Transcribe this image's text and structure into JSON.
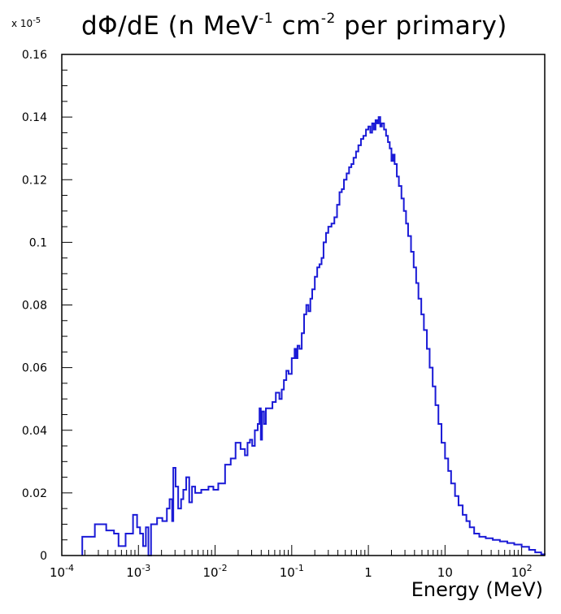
{
  "chart_data": {
    "type": "line",
    "title": {
      "main": "dΦ/dE (n MeV",
      "sup1": "-1",
      "mid": " cm",
      "sup2": "-2",
      "end": " per primary)"
    },
    "y_multiplier": {
      "prefix": "x 10",
      "exponent": "-5"
    },
    "xlabel": "Energy (MeV)",
    "ylabel": "",
    "x_scale": "log",
    "xlim": [
      0.0001,
      200
    ],
    "ylim": [
      0,
      0.16
    ],
    "yticks": [
      {
        "value": 0,
        "label": "0"
      },
      {
        "value": 0.02,
        "label": "0.02"
      },
      {
        "value": 0.04,
        "label": "0.04"
      },
      {
        "value": 0.06,
        "label": "0.06"
      },
      {
        "value": 0.08,
        "label": "0.08"
      },
      {
        "value": 0.1,
        "label": "0.1"
      },
      {
        "value": 0.12,
        "label": "0.12"
      },
      {
        "value": 0.14,
        "label": "0.14"
      },
      {
        "value": 0.16,
        "label": "0.16"
      }
    ],
    "xticks": [
      {
        "value": 0.0001,
        "base": "10",
        "exp": "-4"
      },
      {
        "value": 0.001,
        "base": "10",
        "exp": "-3"
      },
      {
        "value": 0.01,
        "base": "10",
        "exp": "-2"
      },
      {
        "value": 0.1,
        "base": "10",
        "exp": "-1"
      },
      {
        "value": 1,
        "base": "1",
        "exp": ""
      },
      {
        "value": 10,
        "base": "10",
        "exp": ""
      },
      {
        "value": 100,
        "base": "10",
        "exp": "2"
      }
    ],
    "grid": false,
    "series": [
      {
        "color": "#1a1ad6",
        "points": [
          [
            0.000185,
            0
          ],
          [
            0.000185,
            0.006
          ],
          [
            0.00027,
            0.01
          ],
          [
            0.00038,
            0.008
          ],
          [
            0.00048,
            0.007
          ],
          [
            0.00055,
            0.003
          ],
          [
            0.00068,
            0.007
          ],
          [
            0.00085,
            0.013
          ],
          [
            0.00096,
            0.009
          ],
          [
            0.00105,
            0.007
          ],
          [
            0.00115,
            0.003
          ],
          [
            0.00125,
            0.009
          ],
          [
            0.00135,
            0
          ],
          [
            0.00146,
            0.01
          ],
          [
            0.00175,
            0.012
          ],
          [
            0.00205,
            0.011
          ],
          [
            0.00235,
            0.015
          ],
          [
            0.00255,
            0.018
          ],
          [
            0.00275,
            0.011
          ],
          [
            0.00285,
            0.028
          ],
          [
            0.00305,
            0.022
          ],
          [
            0.0033,
            0.015
          ],
          [
            0.0036,
            0.018
          ],
          [
            0.00385,
            0.021
          ],
          [
            0.0042,
            0.025
          ],
          [
            0.0046,
            0.017
          ],
          [
            0.005,
            0.022
          ],
          [
            0.0055,
            0.02
          ],
          [
            0.0066,
            0.021
          ],
          [
            0.0082,
            0.022
          ],
          [
            0.0095,
            0.021
          ],
          [
            0.011,
            0.023
          ],
          [
            0.0135,
            0.029
          ],
          [
            0.016,
            0.031
          ],
          [
            0.0185,
            0.036
          ],
          [
            0.0215,
            0.034
          ],
          [
            0.0245,
            0.032
          ],
          [
            0.0265,
            0.036
          ],
          [
            0.0285,
            0.037
          ],
          [
            0.0305,
            0.035
          ],
          [
            0.033,
            0.04
          ],
          [
            0.036,
            0.042
          ],
          [
            0.038,
            0.047
          ],
          [
            0.0395,
            0.037
          ],
          [
            0.041,
            0.046
          ],
          [
            0.0435,
            0.042
          ],
          [
            0.046,
            0.047
          ],
          [
            0.05,
            0.047
          ],
          [
            0.056,
            0.049
          ],
          [
            0.062,
            0.052
          ],
          [
            0.069,
            0.05
          ],
          [
            0.074,
            0.053
          ],
          [
            0.079,
            0.056
          ],
          [
            0.085,
            0.059
          ],
          [
            0.091,
            0.058
          ],
          [
            0.1,
            0.063
          ],
          [
            0.109,
            0.066
          ],
          [
            0.114,
            0.063
          ],
          [
            0.119,
            0.067
          ],
          [
            0.126,
            0.066
          ],
          [
            0.135,
            0.071
          ],
          [
            0.145,
            0.077
          ],
          [
            0.155,
            0.08
          ],
          [
            0.165,
            0.078
          ],
          [
            0.175,
            0.082
          ],
          [
            0.185,
            0.085
          ],
          [
            0.2,
            0.089
          ],
          [
            0.215,
            0.092
          ],
          [
            0.23,
            0.093
          ],
          [
            0.245,
            0.095
          ],
          [
            0.26,
            0.1
          ],
          [
            0.28,
            0.103
          ],
          [
            0.3,
            0.105
          ],
          [
            0.33,
            0.106
          ],
          [
            0.36,
            0.108
          ],
          [
            0.39,
            0.112
          ],
          [
            0.42,
            0.116
          ],
          [
            0.45,
            0.117
          ],
          [
            0.48,
            0.12
          ],
          [
            0.52,
            0.122
          ],
          [
            0.56,
            0.124
          ],
          [
            0.6,
            0.125
          ],
          [
            0.64,
            0.127
          ],
          [
            0.69,
            0.129
          ],
          [
            0.74,
            0.131
          ],
          [
            0.8,
            0.133
          ],
          [
            0.86,
            0.134
          ],
          [
            0.93,
            0.136
          ],
          [
            1.0,
            0.137
          ],
          [
            1.06,
            0.135
          ],
          [
            1.12,
            0.138
          ],
          [
            1.18,
            0.136
          ],
          [
            1.24,
            0.139
          ],
          [
            1.3,
            0.138
          ],
          [
            1.36,
            0.14
          ],
          [
            1.43,
            0.137
          ],
          [
            1.5,
            0.138
          ],
          [
            1.6,
            0.136
          ],
          [
            1.7,
            0.134
          ],
          [
            1.8,
            0.132
          ],
          [
            1.9,
            0.13
          ],
          [
            2.0,
            0.126
          ],
          [
            2.1,
            0.128
          ],
          [
            2.2,
            0.125
          ],
          [
            2.35,
            0.121
          ],
          [
            2.5,
            0.118
          ],
          [
            2.7,
            0.114
          ],
          [
            2.9,
            0.11
          ],
          [
            3.1,
            0.106
          ],
          [
            3.3,
            0.102
          ],
          [
            3.6,
            0.097
          ],
          [
            3.9,
            0.092
          ],
          [
            4.2,
            0.087
          ],
          [
            4.5,
            0.082
          ],
          [
            4.9,
            0.077
          ],
          [
            5.3,
            0.072
          ],
          [
            5.8,
            0.066
          ],
          [
            6.3,
            0.06
          ],
          [
            6.9,
            0.054
          ],
          [
            7.5,
            0.048
          ],
          [
            8.2,
            0.042
          ],
          [
            9.0,
            0.036
          ],
          [
            10.0,
            0.031
          ],
          [
            11.0,
            0.027
          ],
          [
            12.0,
            0.023
          ],
          [
            13.5,
            0.019
          ],
          [
            15.0,
            0.016
          ],
          [
            17.0,
            0.013
          ],
          [
            19.0,
            0.011
          ],
          [
            21.0,
            0.009
          ],
          [
            24.0,
            0.007
          ],
          [
            28.0,
            0.006
          ],
          [
            34.0,
            0.0055
          ],
          [
            42.0,
            0.005
          ],
          [
            52.0,
            0.0045
          ],
          [
            65.0,
            0.004
          ],
          [
            80.0,
            0.0035
          ],
          [
            100.0,
            0.0028
          ],
          [
            125.0,
            0.0018
          ],
          [
            150.0,
            0.001
          ],
          [
            180.0,
            0.0004
          ],
          [
            200.0,
            0.0002
          ]
        ]
      }
    ]
  }
}
